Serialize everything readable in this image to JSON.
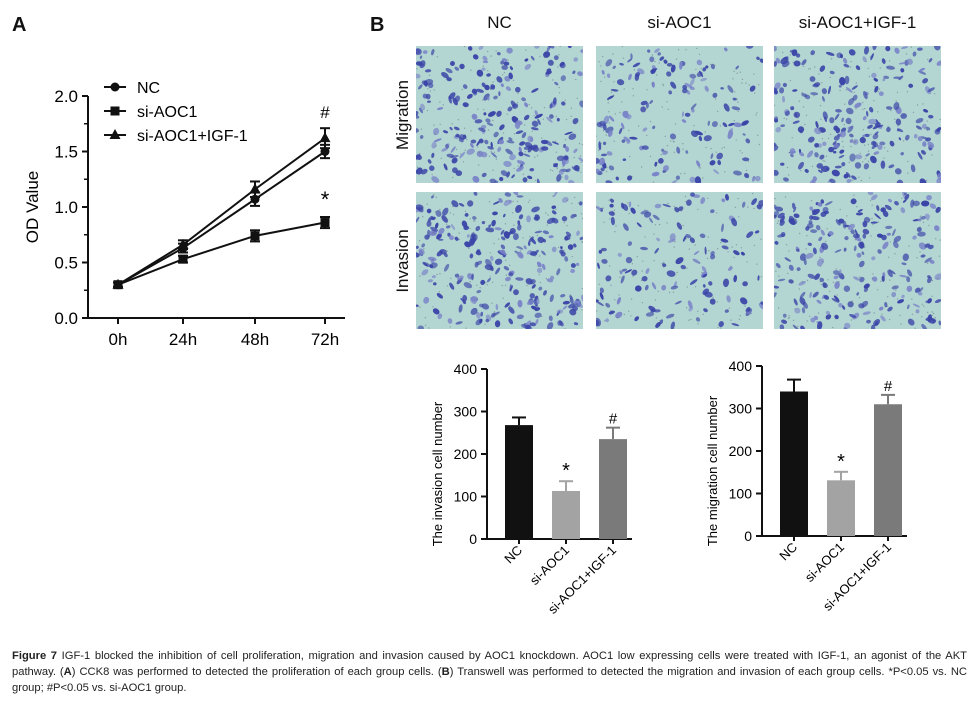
{
  "panel_a": {
    "letter": "A",
    "chart_data": {
      "type": "line",
      "categories": [
        "0h",
        "24h",
        "48h",
        "72h"
      ],
      "ylabel": "OD Value",
      "ylim": [
        0,
        2.0
      ],
      "yticks": [
        "0.0",
        "0.5",
        "1.0",
        "1.5",
        "2.0"
      ],
      "series": [
        {
          "name": "NC",
          "marker": "circle",
          "values": [
            0.3,
            0.63,
            1.07,
            1.5
          ],
          "errors": [
            0.02,
            0.04,
            0.06,
            0.06
          ]
        },
        {
          "name": "si-AOC1",
          "marker": "square",
          "values": [
            0.3,
            0.53,
            0.74,
            0.86
          ],
          "errors": [
            0.02,
            0.03,
            0.05,
            0.05
          ]
        },
        {
          "name": "si-AOC1+IGF-1",
          "marker": "triangle",
          "values": [
            0.3,
            0.66,
            1.16,
            1.62
          ],
          "errors": [
            0.02,
            0.04,
            0.07,
            0.09
          ]
        }
      ],
      "annotations": [
        {
          "text": "#",
          "series": "si-AOC1+IGF-1",
          "category": "72h"
        },
        {
          "text": "*",
          "series": "si-AOC1",
          "category": "72h"
        }
      ]
    }
  },
  "panel_b": {
    "letter": "B",
    "columns": [
      "NC",
      "si-AOC1",
      "si-AOC1+IGF-1"
    ],
    "rows": [
      "Migration",
      "Invasion"
    ],
    "micrograph_density": [
      [
        0.9,
        0.55,
        0.85
      ],
      [
        0.95,
        0.5,
        0.85
      ]
    ],
    "colors": {
      "micro_bg": "#b4d6d2",
      "cell": "#3b45a8",
      "cell_light": "#7a84c8"
    },
    "charts": [
      {
        "type": "bar",
        "categories": [
          "NC",
          "si-AOC1",
          "si-AOC1+IGF-1"
        ],
        "values": [
          268,
          113,
          235
        ],
        "errors": [
          18,
          23,
          27
        ],
        "colors": [
          "#111111",
          "#a3a3a3",
          "#7a7a7a"
        ],
        "ylabel": "The invasion cell number",
        "ylim": [
          0,
          400
        ],
        "yticks": [
          "0",
          "100",
          "200",
          "300",
          "400"
        ],
        "annotations": [
          "",
          "*",
          "#"
        ]
      },
      {
        "type": "bar",
        "categories": [
          "NC",
          "si-AOC1",
          "si-AOC1+IGF-1"
        ],
        "values": [
          340,
          131,
          310
        ],
        "errors": [
          28,
          20,
          22
        ],
        "colors": [
          "#111111",
          "#a3a3a3",
          "#7a7a7a"
        ],
        "ylabel": "The migration cell number",
        "ylim": [
          0,
          400
        ],
        "yticks": [
          "0",
          "100",
          "200",
          "300",
          "400"
        ],
        "annotations": [
          "",
          "*",
          "#"
        ]
      }
    ]
  },
  "caption": {
    "label": "Figure 7",
    "text": "IGF-1 blocked the inhibition of cell proliferation, migration and invasion caused by AOC1 knockdown. AOC1 low expressing cells were treated with IGF-1, an agonist of the AKT pathway. (",
    "a_ref": "A",
    "a_text": ") CCK8 was performed to detected the proliferation of each group cells. (",
    "b_ref": "B",
    "b_text": ") Transwell was performed to detected the migration and invasion of each group cells. *P<0.05 vs. NC group; #P<0.05 vs. si-AOC1 group."
  }
}
